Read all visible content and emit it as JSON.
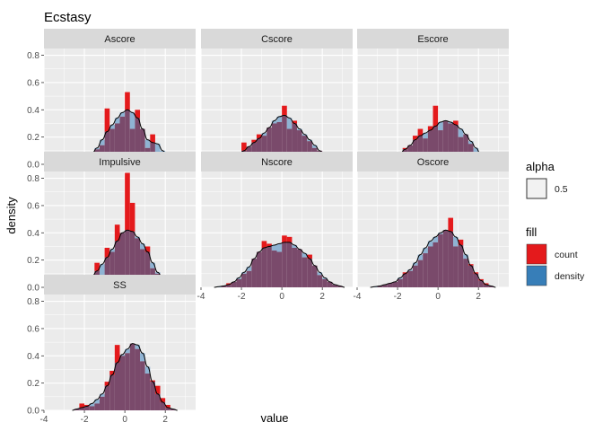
{
  "chart_data": {
    "type": "histogram_density_facets",
    "title": "Ecstasy",
    "xlabel": "value",
    "ylabel": "density",
    "xlim": [
      -4,
      3.5
    ],
    "ylim": [
      0,
      0.85
    ],
    "x_ticks": [
      -4,
      -2,
      0,
      2
    ],
    "y_ticks": [
      0.0,
      0.2,
      0.4,
      0.6,
      0.8
    ],
    "y_tick_labels": [
      "0.0",
      "0.2",
      "0.4",
      "0.6",
      "0.8"
    ],
    "x_tick_labels": [
      "-4",
      "-2",
      "0",
      "2"
    ],
    "grid": true,
    "legend_position": "right",
    "colors": {
      "count": "#e41a1c",
      "density": "#377eb8",
      "overlap": "#7a4a6b",
      "panel_bg": "#ebebeb",
      "strip_bg": "#d9d9d9"
    },
    "legend": {
      "alpha_title": "alpha",
      "alpha_value": "0.5",
      "fill_title": "fill",
      "fill_items": [
        "count",
        "density"
      ]
    },
    "bin_width": 0.25,
    "facets": [
      {
        "name": "Ascore",
        "bin_starts": [
          -3.25,
          -3.0,
          -2.75,
          -2.5,
          -2.25,
          -2.0,
          -1.75,
          -1.5,
          -1.25,
          -1.0,
          -0.75,
          -0.5,
          -0.25,
          0.0,
          0.25,
          0.5,
          0.75,
          1.0,
          1.25,
          1.5,
          1.75,
          2.0,
          2.25,
          2.5
        ],
        "count": [
          0.01,
          0.01,
          0,
          0.03,
          0.04,
          0.02,
          0.06,
          0.11,
          0.14,
          0.41,
          0.26,
          0.3,
          0.35,
          0.53,
          0.26,
          0.4,
          0.26,
          0.12,
          0.22,
          0.09,
          0.05,
          0.03,
          0.02,
          0.01
        ],
        "density": [
          0.005,
          0.01,
          0.02,
          0.03,
          0.04,
          0.06,
          0.08,
          0.12,
          0.18,
          0.24,
          0.29,
          0.34,
          0.38,
          0.4,
          0.38,
          0.34,
          0.26,
          0.18,
          0.16,
          0.15,
          0.1,
          0.05,
          0.02,
          0.01
        ]
      },
      {
        "name": "Cscore",
        "bin_starts": [
          -3.25,
          -3.0,
          -2.75,
          -2.5,
          -2.25,
          -2.0,
          -1.75,
          -1.5,
          -1.25,
          -1.0,
          -0.75,
          -0.5,
          -0.25,
          0.0,
          0.25,
          0.5,
          0.75,
          1.0,
          1.25,
          1.5,
          1.75,
          2.0,
          2.25,
          2.5
        ],
        "count": [
          0,
          0.02,
          0.04,
          0.07,
          0.09,
          0.16,
          0.13,
          0.18,
          0.22,
          0.21,
          0.27,
          0.3,
          0.31,
          0.43,
          0.26,
          0.32,
          0.25,
          0.21,
          0.17,
          0.12,
          0.1,
          0.05,
          0.03,
          0.01
        ],
        "density": [
          0.005,
          0.01,
          0.02,
          0.04,
          0.07,
          0.1,
          0.13,
          0.16,
          0.19,
          0.23,
          0.27,
          0.32,
          0.35,
          0.36,
          0.34,
          0.3,
          0.26,
          0.22,
          0.18,
          0.14,
          0.1,
          0.06,
          0.03,
          0.01
        ]
      },
      {
        "name": "Escore",
        "bin_starts": [
          -3.25,
          -3.0,
          -2.75,
          -2.5,
          -2.25,
          -2.0,
          -1.75,
          -1.5,
          -1.25,
          -1.0,
          -0.75,
          -0.5,
          -0.25,
          0.0,
          0.25,
          0.5,
          0.75,
          1.0,
          1.25,
          1.5,
          1.75,
          2.0,
          2.25,
          2.5
        ],
        "count": [
          0,
          0.01,
          0.03,
          0.02,
          0.04,
          0.05,
          0.12,
          0.14,
          0.21,
          0.26,
          0.19,
          0.28,
          0.43,
          0.25,
          0.32,
          0.3,
          0.32,
          0.2,
          0.22,
          0.15,
          0.08,
          0.05,
          0.02,
          0.01
        ],
        "density": [
          0.005,
          0.01,
          0.02,
          0.03,
          0.05,
          0.08,
          0.11,
          0.14,
          0.18,
          0.21,
          0.23,
          0.25,
          0.28,
          0.31,
          0.32,
          0.31,
          0.29,
          0.26,
          0.22,
          0.17,
          0.12,
          0.07,
          0.03,
          0.01
        ]
      },
      {
        "name": "Impulsive",
        "bin_starts": [
          -3.0,
          -2.75,
          -2.5,
          -2.25,
          -2.0,
          -1.75,
          -1.5,
          -1.25,
          -1.0,
          -0.75,
          -0.5,
          -0.25,
          0.0,
          0.25,
          0.5,
          0.75,
          1.0,
          1.25,
          1.5,
          1.75,
          2.0,
          2.25,
          2.5,
          2.75
        ],
        "count": [
          0,
          0.01,
          0.02,
          0.02,
          0.04,
          0.06,
          0.18,
          0.08,
          0.29,
          0.26,
          0.46,
          0.4,
          0.84,
          0.62,
          0.36,
          0.28,
          0.3,
          0.14,
          0.1,
          0.06,
          0.03,
          0.02,
          0.01,
          0
        ],
        "density": [
          0.005,
          0.01,
          0.01,
          0.02,
          0.05,
          0.08,
          0.12,
          0.17,
          0.22,
          0.28,
          0.34,
          0.4,
          0.42,
          0.41,
          0.37,
          0.32,
          0.26,
          0.18,
          0.11,
          0.06,
          0.03,
          0.01,
          0.005,
          0
        ]
      },
      {
        "name": "Nscore",
        "bin_starts": [
          -3.25,
          -3.0,
          -2.75,
          -2.5,
          -2.25,
          -2.0,
          -1.75,
          -1.5,
          -1.25,
          -1.0,
          -0.75,
          -0.5,
          -0.25,
          0.0,
          0.25,
          0.5,
          0.75,
          1.0,
          1.25,
          1.5,
          1.75,
          2.0,
          2.25,
          2.5,
          2.75
        ],
        "count": [
          0,
          0.01,
          0.03,
          0.04,
          0.06,
          0.1,
          0.12,
          0.21,
          0.26,
          0.34,
          0.32,
          0.27,
          0.26,
          0.38,
          0.37,
          0.29,
          0.28,
          0.22,
          0.24,
          0.16,
          0.09,
          0.06,
          0.04,
          0.02,
          0.01
        ],
        "density": [
          0.005,
          0.01,
          0.02,
          0.04,
          0.07,
          0.11,
          0.15,
          0.21,
          0.26,
          0.29,
          0.3,
          0.31,
          0.32,
          0.33,
          0.33,
          0.31,
          0.28,
          0.25,
          0.21,
          0.16,
          0.11,
          0.07,
          0.04,
          0.02,
          0.01
        ]
      },
      {
        "name": "Oscore",
        "bin_starts": [
          -3.25,
          -3.0,
          -2.75,
          -2.5,
          -2.25,
          -2.0,
          -1.75,
          -1.5,
          -1.25,
          -1.0,
          -0.75,
          -0.5,
          -0.25,
          0.0,
          0.25,
          0.5,
          0.75,
          1.0,
          1.25,
          1.5,
          1.75,
          2.0,
          2.25,
          2.5
        ],
        "count": [
          0,
          0.01,
          0.02,
          0.03,
          0.04,
          0.06,
          0.11,
          0.12,
          0.16,
          0.2,
          0.25,
          0.3,
          0.33,
          0.39,
          0.42,
          0.51,
          0.3,
          0.35,
          0.21,
          0.17,
          0.11,
          0.06,
          0.03,
          0.01
        ],
        "density": [
          0.005,
          0.01,
          0.02,
          0.03,
          0.04,
          0.07,
          0.1,
          0.13,
          0.18,
          0.24,
          0.29,
          0.34,
          0.37,
          0.4,
          0.42,
          0.41,
          0.37,
          0.31,
          0.24,
          0.16,
          0.1,
          0.05,
          0.02,
          0.01
        ]
      },
      {
        "name": "SS",
        "bin_starts": [
          -2.5,
          -2.25,
          -2.0,
          -1.75,
          -1.5,
          -1.25,
          -1.0,
          -0.75,
          -0.5,
          -0.25,
          0.0,
          0.25,
          0.5,
          0.75,
          1.0,
          1.25,
          1.5,
          1.75,
          2.0,
          2.25
        ],
        "count": [
          0.01,
          0.05,
          0.04,
          0.03,
          0.05,
          0.1,
          0.21,
          0.29,
          0.48,
          0.4,
          0.42,
          0.49,
          0.45,
          0.36,
          0.27,
          0.22,
          0.18,
          0.09,
          0.04,
          0.01
        ],
        "density": [
          0.01,
          0.02,
          0.03,
          0.05,
          0.08,
          0.12,
          0.18,
          0.26,
          0.35,
          0.41,
          0.45,
          0.49,
          0.48,
          0.42,
          0.32,
          0.21,
          0.12,
          0.06,
          0.02,
          0.01
        ]
      }
    ]
  }
}
